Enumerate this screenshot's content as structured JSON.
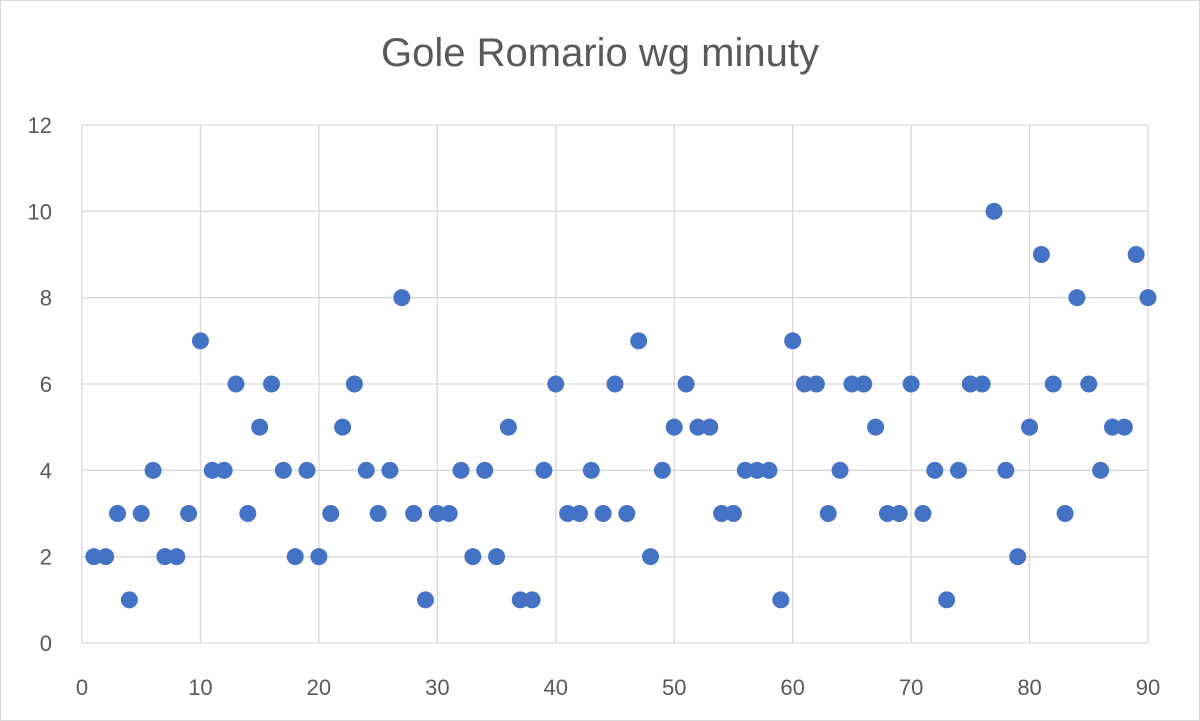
{
  "chart_data": {
    "type": "scatter",
    "title": "Gole Romario wg minuty",
    "xlabel": "",
    "ylabel": "",
    "xlim": [
      0,
      90
    ],
    "ylim": [
      0,
      12
    ],
    "xticks": [
      0,
      10,
      20,
      30,
      40,
      50,
      60,
      70,
      80,
      90
    ],
    "yticks": [
      0,
      2,
      4,
      6,
      8,
      10,
      12
    ],
    "grid": true,
    "legend": "none",
    "marker_color": "#4472c4",
    "series": [
      {
        "x": [
          1,
          2,
          3,
          4,
          5,
          6,
          7,
          8,
          9,
          10,
          11,
          12,
          13,
          14,
          15,
          16,
          17,
          18,
          19,
          20,
          21,
          22,
          23,
          24,
          25,
          26,
          27,
          28,
          29,
          30,
          31,
          32,
          33,
          34,
          35,
          36,
          37,
          38,
          39,
          40,
          41,
          42,
          43,
          44,
          45,
          46,
          47,
          48,
          49,
          50,
          51,
          52,
          53,
          54,
          55,
          56,
          57,
          58,
          59,
          60,
          61,
          62,
          63,
          64,
          65,
          66,
          67,
          68,
          69,
          70,
          71,
          72,
          73,
          74,
          75,
          76,
          77,
          78,
          79,
          80,
          81,
          82,
          83,
          84,
          85,
          86,
          87,
          88,
          89,
          90
        ],
        "y": [
          2,
          2,
          3,
          1,
          3,
          4,
          2,
          2,
          3,
          7,
          4,
          4,
          6,
          3,
          5,
          6,
          4,
          2,
          4,
          2,
          3,
          5,
          6,
          4,
          3,
          4,
          8,
          3,
          1,
          3,
          3,
          4,
          2,
          4,
          2,
          5,
          1,
          1,
          4,
          6,
          3,
          3,
          4,
          3,
          6,
          3,
          7,
          2,
          4,
          5,
          6,
          5,
          5,
          3,
          3,
          4,
          4,
          4,
          1,
          7,
          6,
          6,
          3,
          4,
          6,
          6,
          5,
          3,
          3,
          6,
          3,
          4,
          1,
          4,
          6,
          6,
          10,
          4,
          2,
          5,
          9,
          6,
          3,
          8,
          6,
          4,
          5,
          5,
          9,
          8
        ]
      }
    ]
  }
}
